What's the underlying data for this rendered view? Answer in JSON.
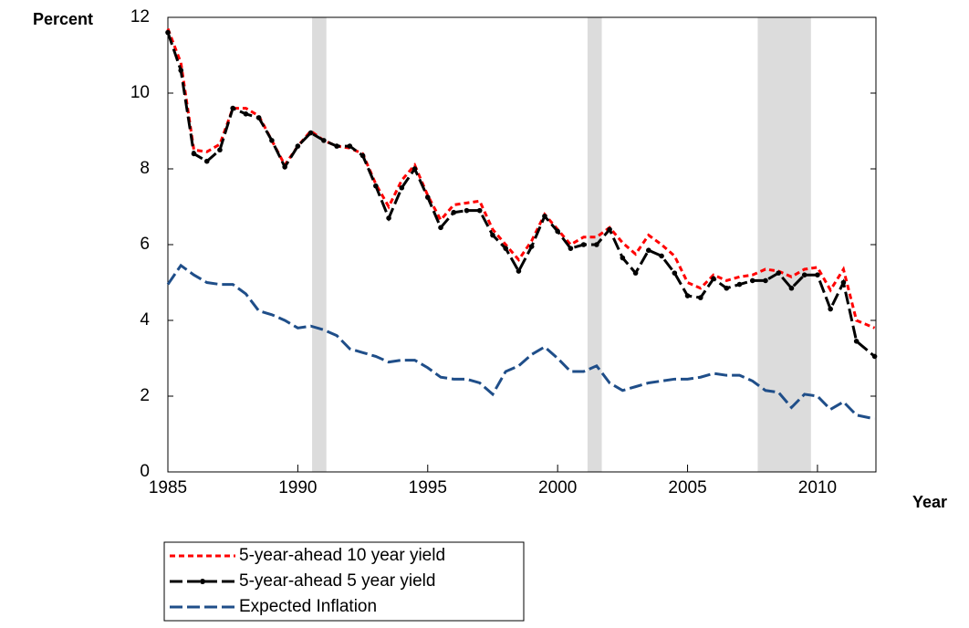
{
  "chart_data": {
    "type": "line",
    "y_label": "Percent",
    "x_label": "Year",
    "x": [
      1985.0,
      1985.5,
      1986.0,
      1986.5,
      1987.0,
      1987.5,
      1988.0,
      1988.5,
      1989.0,
      1989.5,
      1990.0,
      1990.5,
      1991.0,
      1991.5,
      1992.0,
      1992.5,
      1993.0,
      1993.5,
      1994.0,
      1994.5,
      1995.0,
      1995.5,
      1996.0,
      1996.5,
      1997.0,
      1997.5,
      1998.0,
      1998.5,
      1999.0,
      1999.5,
      2000.0,
      2000.5,
      2001.0,
      2001.5,
      2002.0,
      2002.5,
      2003.0,
      2003.5,
      2004.0,
      2004.5,
      2005.0,
      2005.5,
      2006.0,
      2006.5,
      2007.0,
      2007.5,
      2008.0,
      2008.5,
      2009.0,
      2009.5,
      2010.0,
      2010.5,
      2011.0,
      2011.5,
      2012.2
    ],
    "series": [
      {
        "name": "5-year-ahead 10 year yield",
        "color": "#ff0000",
        "dash": "6,4",
        "markers": false,
        "values": [
          11.7,
          10.8,
          8.5,
          8.45,
          8.65,
          9.6,
          9.6,
          9.4,
          8.75,
          8.1,
          8.6,
          9.0,
          8.75,
          8.6,
          8.55,
          8.4,
          7.6,
          7.0,
          7.7,
          8.1,
          7.3,
          6.65,
          7.05,
          7.1,
          7.15,
          6.4,
          6.0,
          5.6,
          6.1,
          6.8,
          6.4,
          6.0,
          6.2,
          6.2,
          6.45,
          6.05,
          5.75,
          6.25,
          6.0,
          5.7,
          5.0,
          4.85,
          5.2,
          5.05,
          5.15,
          5.2,
          5.35,
          5.3,
          5.15,
          5.35,
          5.4,
          4.8,
          5.35,
          4.0,
          3.8
        ]
      },
      {
        "name": "5-year-ahead 5 year yield",
        "color": "#000000",
        "dash": "14,5",
        "markers": true,
        "values": [
          11.6,
          10.6,
          8.4,
          8.2,
          8.5,
          9.6,
          9.45,
          9.35,
          8.75,
          8.05,
          8.6,
          8.95,
          8.75,
          8.6,
          8.6,
          8.35,
          7.55,
          6.7,
          7.5,
          8.0,
          7.25,
          6.45,
          6.85,
          6.9,
          6.9,
          6.25,
          5.9,
          5.3,
          5.95,
          6.75,
          6.35,
          5.9,
          6.0,
          6.0,
          6.4,
          5.65,
          5.25,
          5.85,
          5.7,
          5.25,
          4.65,
          4.6,
          5.1,
          4.85,
          4.95,
          5.05,
          5.05,
          5.25,
          4.85,
          5.2,
          5.2,
          4.3,
          5.0,
          3.45,
          3.05
        ]
      },
      {
        "name": "Expected Inflation",
        "color": "#1f4e89",
        "dash": "14,5",
        "markers": false,
        "values": [
          4.95,
          5.45,
          5.2,
          5.0,
          4.95,
          4.95,
          4.7,
          4.25,
          4.15,
          4.0,
          3.8,
          3.85,
          3.75,
          3.6,
          3.25,
          3.15,
          3.05,
          2.9,
          2.95,
          2.95,
          2.75,
          2.5,
          2.45,
          2.45,
          2.35,
          2.05,
          2.65,
          2.8,
          3.1,
          3.3,
          3.0,
          2.65,
          2.65,
          2.8,
          2.35,
          2.15,
          2.25,
          2.35,
          2.4,
          2.45,
          2.45,
          2.5,
          2.6,
          2.55,
          2.55,
          2.4,
          2.15,
          2.1,
          1.7,
          2.05,
          2.0,
          1.65,
          1.85,
          1.5,
          1.4
        ]
      }
    ],
    "recessions": [
      [
        1990.55,
        1991.1
      ],
      [
        2001.15,
        2001.7
      ],
      [
        2007.7,
        2009.75
      ]
    ],
    "recession_color": "#dcdcdc",
    "xlim": [
      1985,
      2012.25
    ],
    "xticks": [
      1985,
      1990,
      1995,
      2000,
      2005,
      2010
    ],
    "ylim": [
      0,
      12
    ],
    "yticks": [
      0,
      2,
      4,
      6,
      8,
      10,
      12
    ]
  }
}
